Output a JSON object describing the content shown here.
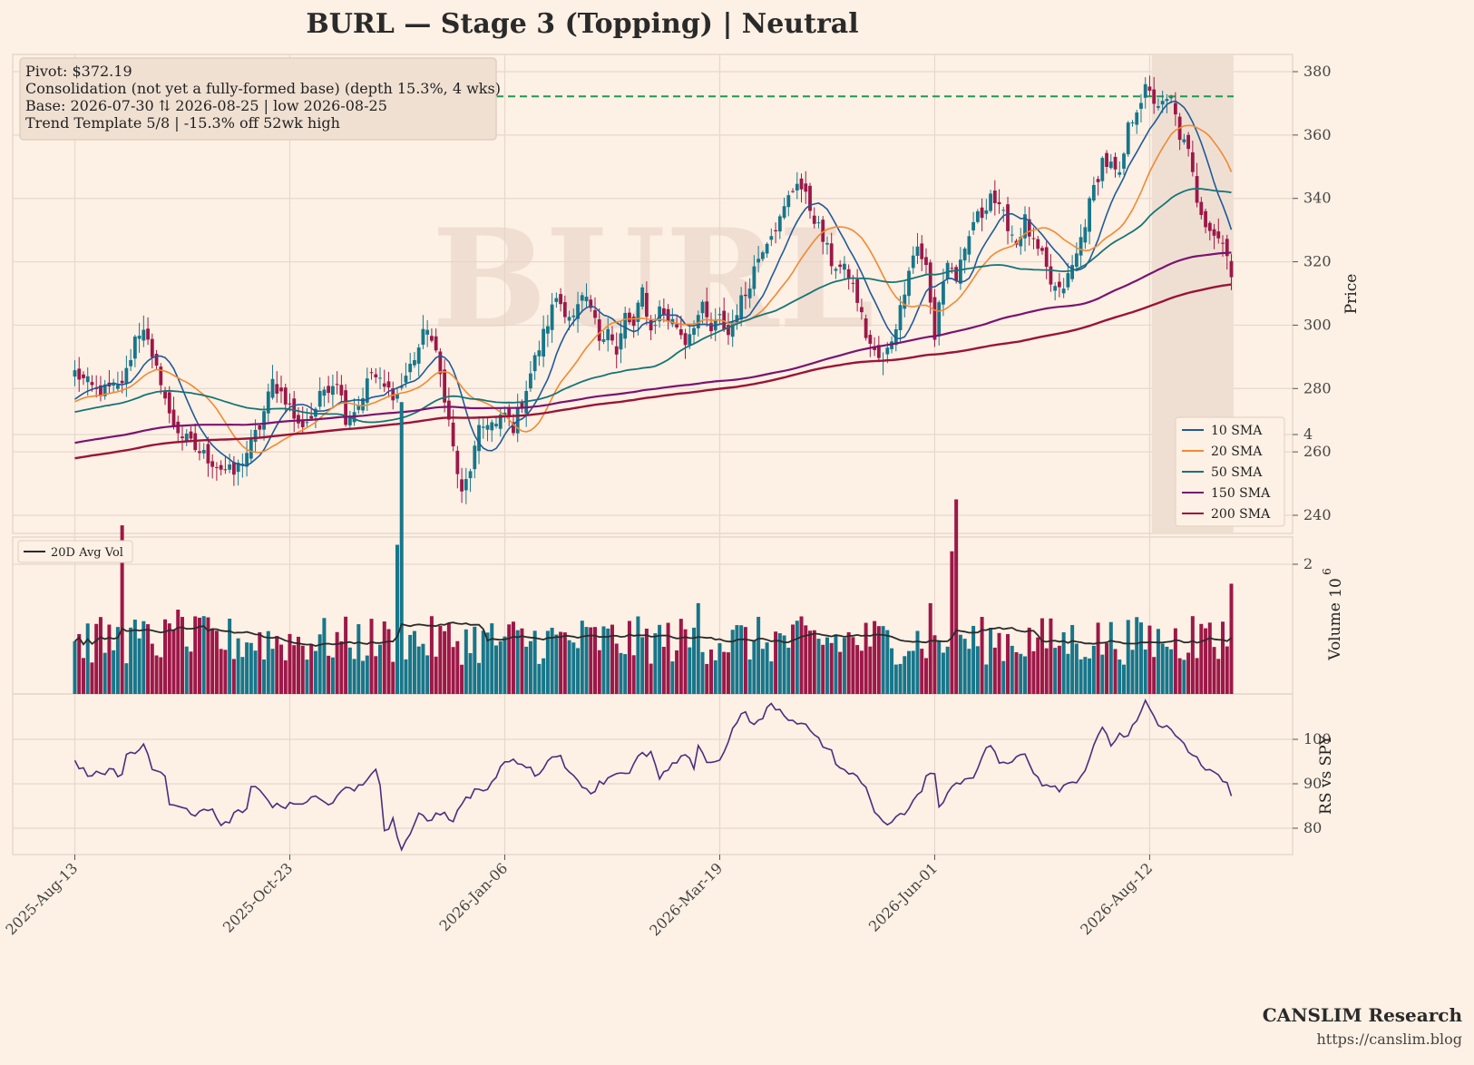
{
  "title": "BURL  —  Stage 3 (Topping)  |  Neutral",
  "watermark": "BURL",
  "info_box": {
    "lines": [
      "Pivot: $372.19",
      "Consolidation (not yet a fully-formed base)  (depth 15.3%, 4 wks)",
      "Base: 2026-07-30 ⇅ 2026-08-25  |  low 2026-08-25",
      "Trend Template 5/8  |  -15.3% off 52wk high"
    ]
  },
  "footer": {
    "brand": "CANSLIM Research",
    "url": "https://canslim.blog"
  },
  "colors": {
    "background": "#fdf0e4",
    "grid": "#e6d8cc",
    "up": "#17768a",
    "down": "#9c1848",
    "sma10": "#1f5a99",
    "sma20": "#f08a32",
    "sma50": "#177477",
    "sma150": "#7a1470",
    "sma200": "#9a1438",
    "avg_vol": "#2b2b2b",
    "rs": "#4b2d7f",
    "pivot": "#1f9a52",
    "base_shade": "#efdfd3"
  },
  "chart_data": [
    {
      "type": "candlestick",
      "panel": "price",
      "ylabel": "Price",
      "ylim": [
        235,
        385
      ],
      "yticks": [
        240,
        260,
        280,
        300,
        320,
        340,
        360,
        380
      ],
      "pivot": 372.19,
      "base_shade_dates": [
        "2026-07-30",
        "2026-08-25"
      ],
      "x_tick_labels": [
        "2025-Aug-13",
        "2025-Oct-23",
        "2026-Jan-06",
        "2026-Mar-19",
        "2026-Jun-01",
        "2026-Aug-12"
      ],
      "x_tick_index": [
        0,
        50,
        100,
        150,
        200,
        250
      ],
      "close_anchors": [
        [
          0,
          285
        ],
        [
          5,
          279
        ],
        [
          10,
          280
        ],
        [
          12,
          285
        ],
        [
          14,
          296
        ],
        [
          16,
          300
        ],
        [
          18,
          288
        ],
        [
          20,
          283
        ],
        [
          22,
          271
        ],
        [
          25,
          265
        ],
        [
          28,
          261
        ],
        [
          31,
          258
        ],
        [
          34,
          255
        ],
        [
          37,
          253
        ],
        [
          40,
          260
        ],
        [
          43,
          268
        ],
        [
          46,
          282
        ],
        [
          49,
          277
        ],
        [
          52,
          268
        ],
        [
          55,
          271
        ],
        [
          58,
          280
        ],
        [
          61,
          283
        ],
        [
          63,
          271
        ],
        [
          66,
          275
        ],
        [
          69,
          285
        ],
        [
          72,
          280
        ],
        [
          75,
          278
        ],
        [
          78,
          287
        ],
        [
          80,
          293
        ],
        [
          82,
          300
        ],
        [
          84,
          290
        ],
        [
          86,
          278
        ],
        [
          88,
          261
        ],
        [
          90,
          246
        ],
        [
          92,
          255
        ],
        [
          94,
          266
        ],
        [
          96,
          270
        ],
        [
          98,
          268
        ],
        [
          100,
          272
        ],
        [
          102,
          268
        ],
        [
          104,
          276
        ],
        [
          106,
          285
        ],
        [
          108,
          293
        ],
        [
          110,
          301
        ],
        [
          112,
          309
        ],
        [
          114,
          305
        ],
        [
          116,
          302
        ],
        [
          118,
          308
        ],
        [
          120,
          305
        ],
        [
          122,
          296
        ],
        [
          124,
          300
        ],
        [
          126,
          290
        ],
        [
          128,
          303
        ],
        [
          130,
          299
        ],
        [
          132,
          311
        ],
        [
          134,
          298
        ],
        [
          136,
          305
        ],
        [
          138,
          302
        ],
        [
          140,
          300
        ],
        [
          142,
          295
        ],
        [
          144,
          301
        ],
        [
          146,
          305
        ],
        [
          148,
          298
        ],
        [
          150,
          302
        ],
        [
          152,
          297
        ],
        [
          154,
          305
        ],
        [
          156,
          310
        ],
        [
          158,
          318
        ],
        [
          160,
          325
        ],
        [
          162,
          330
        ],
        [
          164,
          333
        ],
        [
          166,
          340
        ],
        [
          168,
          346
        ],
        [
          170,
          340
        ],
        [
          172,
          334
        ],
        [
          174,
          327
        ],
        [
          176,
          320
        ],
        [
          178,
          318
        ],
        [
          180,
          316
        ],
        [
          182,
          308
        ],
        [
          184,
          297
        ],
        [
          186,
          291
        ],
        [
          188,
          288
        ],
        [
          190,
          296
        ],
        [
          192,
          305
        ],
        [
          194,
          319
        ],
        [
          196,
          325
        ],
        [
          198,
          318
        ],
        [
          200,
          295
        ],
        [
          201,
          308
        ],
        [
          203,
          320
        ],
        [
          205,
          315
        ],
        [
          207,
          322
        ],
        [
          209,
          333
        ],
        [
          211,
          335
        ],
        [
          213,
          342
        ],
        [
          215,
          336
        ],
        [
          217,
          332
        ],
        [
          219,
          326
        ],
        [
          221,
          333
        ],
        [
          223,
          325
        ],
        [
          225,
          321
        ],
        [
          227,
          313
        ],
        [
          229,
          310
        ],
        [
          231,
          315
        ],
        [
          233,
          322
        ],
        [
          235,
          333
        ],
        [
          237,
          343
        ],
        [
          239,
          352
        ],
        [
          241,
          350
        ],
        [
          243,
          346
        ],
        [
          245,
          362
        ],
        [
          247,
          369
        ],
        [
          249,
          374
        ],
        [
          251,
          371
        ],
        [
          253,
          369
        ],
        [
          255,
          371
        ],
        [
          257,
          360
        ],
        [
          259,
          354
        ],
        [
          261,
          340
        ],
        [
          263,
          333
        ],
        [
          265,
          329
        ],
        [
          267,
          326
        ],
        [
          268,
          324
        ],
        [
          269,
          316
        ]
      ],
      "volume_panel": {
        "ylabel": "Volume",
        "exponent_label": "10",
        "exponent": "6",
        "ylim": [
          0,
          4.6
        ],
        "yticks": [
          2,
          4
        ],
        "legend": [
          "20D Avg Vol"
        ],
        "spike_days": [
          [
            11,
            2.6
          ],
          [
            75,
            2.3
          ],
          [
            76,
            4.5
          ],
          [
            145,
            1.4
          ],
          [
            205,
            3.0
          ],
          [
            204,
            2.2
          ],
          [
            199,
            1.4
          ],
          [
            269,
            1.7
          ],
          [
            260,
            1.2
          ],
          [
            264,
            1.1
          ],
          [
            24,
            1.3
          ],
          [
            30,
            1.2
          ]
        ]
      },
      "rs_panel": {
        "ylabel": "RS vs SPY",
        "ylim": [
          74,
          110
        ],
        "yticks": [
          80,
          90,
          100
        ],
        "rs_anchors": [
          [
            0,
            95
          ],
          [
            3,
            92
          ],
          [
            8,
            93
          ],
          [
            11,
            92
          ],
          [
            12,
            97
          ],
          [
            15,
            97
          ],
          [
            16,
            99
          ],
          [
            18,
            94
          ],
          [
            21,
            91
          ],
          [
            22,
            86
          ],
          [
            26,
            85
          ],
          [
            28,
            82
          ],
          [
            30,
            85
          ],
          [
            32,
            84
          ],
          [
            34,
            80
          ],
          [
            37,
            83
          ],
          [
            40,
            84
          ],
          [
            41,
            89
          ],
          [
            44,
            88
          ],
          [
            46,
            85
          ],
          [
            50,
            85
          ],
          [
            54,
            86
          ],
          [
            56,
            87
          ],
          [
            59,
            85
          ],
          [
            62,
            89
          ],
          [
            65,
            88
          ],
          [
            68,
            91
          ],
          [
            70,
            94
          ],
          [
            71,
            89
          ],
          [
            72,
            79
          ],
          [
            74,
            82
          ],
          [
            76,
            75
          ],
          [
            78,
            78
          ],
          [
            80,
            84
          ],
          [
            82,
            82
          ],
          [
            84,
            83
          ],
          [
            86,
            84
          ],
          [
            88,
            81
          ],
          [
            90,
            86
          ],
          [
            94,
            89
          ],
          [
            96,
            88
          ],
          [
            98,
            92
          ],
          [
            100,
            95
          ],
          [
            104,
            95
          ],
          [
            107,
            92
          ],
          [
            110,
            95
          ],
          [
            113,
            97
          ],
          [
            115,
            92
          ],
          [
            118,
            90
          ],
          [
            120,
            88
          ],
          [
            122,
            90
          ],
          [
            125,
            92
          ],
          [
            127,
            93
          ],
          [
            129,
            92
          ],
          [
            131,
            96
          ],
          [
            134,
            97
          ],
          [
            136,
            91
          ],
          [
            140,
            95
          ],
          [
            142,
            96
          ],
          [
            144,
            94
          ],
          [
            145,
            99
          ],
          [
            147,
            95
          ],
          [
            150,
            95
          ],
          [
            152,
            100
          ],
          [
            154,
            104
          ],
          [
            156,
            106
          ],
          [
            158,
            103
          ],
          [
            160,
            105
          ],
          [
            162,
            108
          ],
          [
            164,
            106
          ],
          [
            166,
            105
          ],
          [
            168,
            103
          ],
          [
            170,
            104
          ],
          [
            173,
            100
          ],
          [
            176,
            97
          ],
          [
            178,
            93
          ],
          [
            180,
            93
          ],
          [
            184,
            89
          ],
          [
            187,
            82
          ],
          [
            189,
            81
          ],
          [
            191,
            83
          ],
          [
            193,
            83
          ],
          [
            196,
            87
          ],
          [
            198,
            91
          ],
          [
            200,
            93
          ],
          [
            201,
            85
          ],
          [
            203,
            88
          ],
          [
            205,
            90
          ],
          [
            207,
            91
          ],
          [
            209,
            92
          ],
          [
            211,
            96
          ],
          [
            213,
            99
          ],
          [
            215,
            95
          ],
          [
            217,
            94
          ],
          [
            219,
            96
          ],
          [
            221,
            97
          ],
          [
            223,
            93
          ],
          [
            225,
            90
          ],
          [
            227,
            90
          ],
          [
            229,
            89
          ],
          [
            231,
            90
          ],
          [
            233,
            91
          ],
          [
            235,
            93
          ],
          [
            237,
            99
          ],
          [
            239,
            102
          ],
          [
            241,
            99
          ],
          [
            243,
            101
          ],
          [
            245,
            101
          ],
          [
            247,
            104
          ],
          [
            249,
            108
          ],
          [
            251,
            105
          ],
          [
            253,
            102
          ],
          [
            255,
            103
          ],
          [
            257,
            100
          ],
          [
            259,
            97
          ],
          [
            261,
            96
          ],
          [
            263,
            93
          ],
          [
            265,
            92
          ],
          [
            267,
            91
          ],
          [
            268,
            90
          ],
          [
            269,
            87
          ]
        ]
      },
      "series_legend": [
        "10 SMA",
        "20 SMA",
        "50 SMA",
        "150 SMA",
        "200 SMA"
      ],
      "sma_params": [
        10,
        20,
        50,
        150,
        200
      ]
    }
  ]
}
